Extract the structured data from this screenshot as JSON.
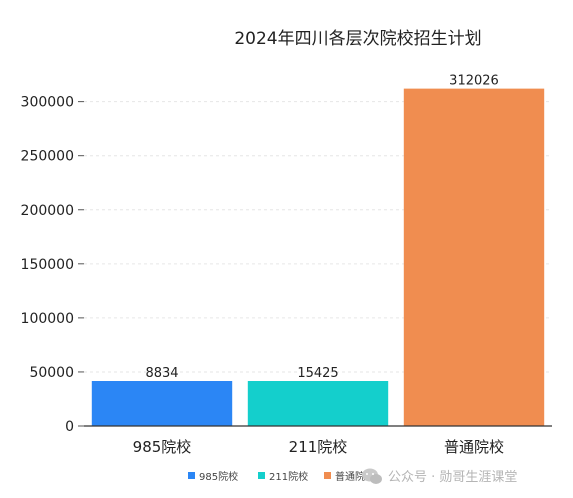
{
  "chart_data": {
    "type": "bar",
    "title": "2024年四川各层次院校招生计划",
    "categories": [
      "985院校",
      "211院校",
      "普通院校"
    ],
    "values": [
      8834,
      15425,
      312026
    ],
    "data_labels": [
      "8834",
      "15425",
      "312026"
    ],
    "colors": [
      "#2b86f5",
      "#14cfcc",
      "#f08d50"
    ],
    "y_ticks": [
      0,
      50000,
      100000,
      150000,
      200000,
      250000,
      300000
    ],
    "y_tick_labels": [
      "0",
      "50000",
      "100000",
      "150000",
      "200000",
      "250000",
      "300000"
    ],
    "ylim": [
      0,
      320000
    ],
    "grid": true,
    "legend_placement": "bottom",
    "legend": [
      "985院校",
      "211院校",
      "普通院校"
    ]
  },
  "watermark": {
    "icon": "wechat-icon",
    "text": "公众号 · 勋哥生涯课堂"
  }
}
